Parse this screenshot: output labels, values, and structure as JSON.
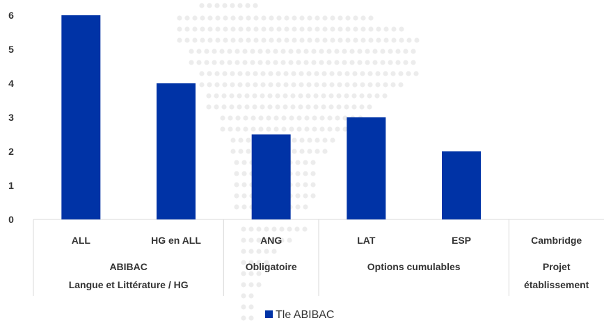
{
  "chart_data": {
    "type": "bar",
    "categories": [
      "ALL",
      "HG en ALL",
      "ANG",
      "LAT",
      "ESP",
      "Cambridge"
    ],
    "groups": [
      {
        "lines": [
          "ABIBAC",
          "Langue et Littérature / HG"
        ],
        "span": [
          0,
          1
        ]
      },
      {
        "lines": [
          "Obligatoire"
        ],
        "span": [
          2,
          2
        ]
      },
      {
        "lines": [
          "Options cumulables"
        ],
        "span": [
          3,
          4
        ]
      },
      {
        "lines": [
          "Projet",
          "établissement"
        ],
        "span": [
          5,
          5
        ]
      }
    ],
    "series": [
      {
        "name": "Tle ABIBAC",
        "values": [
          6,
          4,
          2.5,
          3,
          2,
          0
        ],
        "color": "#0033A6"
      }
    ],
    "ylim": [
      0,
      6
    ],
    "yticks": [
      "0",
      "1",
      "2",
      "3",
      "4",
      "5",
      "6"
    ],
    "grid": false,
    "legend_position": "bottom",
    "title": "",
    "xlabel": "",
    "ylabel": ""
  }
}
